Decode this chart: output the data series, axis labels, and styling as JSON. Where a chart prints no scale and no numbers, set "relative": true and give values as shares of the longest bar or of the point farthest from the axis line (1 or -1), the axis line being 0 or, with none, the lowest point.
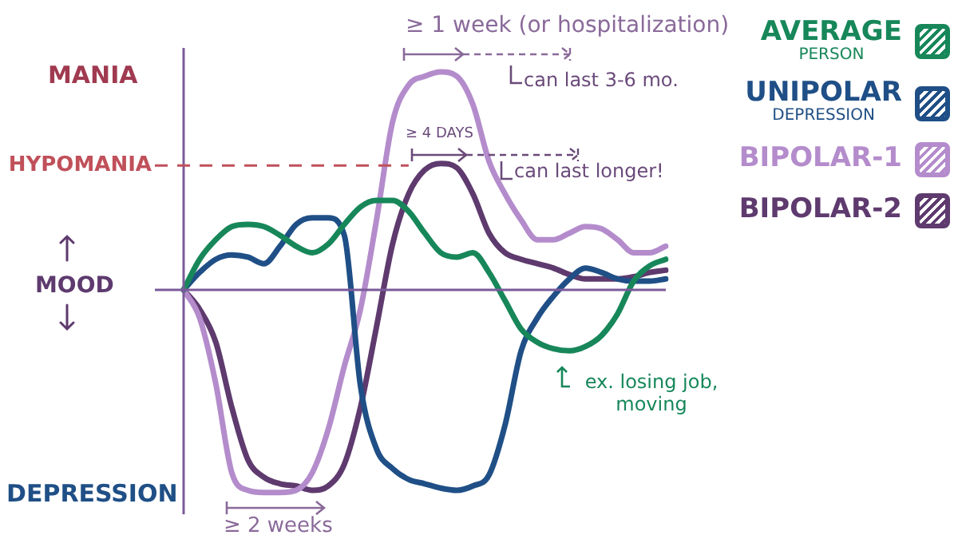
{
  "chart_data": {
    "type": "line",
    "relative": true,
    "ylabel": "MOOD",
    "categories": [
      null,
      null,
      null,
      null,
      null,
      null,
      null,
      null,
      null,
      null,
      null,
      null,
      null,
      null,
      null,
      null,
      null,
      null,
      null,
      null,
      null,
      null,
      null,
      null,
      null,
      null,
      null,
      null,
      null,
      null,
      null
    ],
    "series": [
      {
        "name": "AVERAGE PERSON",
        "color": "#17875a",
        "values": [
          0,
          0.14,
          0.23,
          0.29,
          0.3,
          0.29,
          0.25,
          0.2,
          0.17,
          0.21,
          0.3,
          0.38,
          0.41,
          0.41,
          0.36,
          0.26,
          0.17,
          0.15,
          0.17,
          0.08,
          -0.05,
          -0.18,
          -0.24,
          -0.27,
          -0.28,
          -0.26,
          -0.21,
          -0.11,
          0.04,
          0.11,
          0.14
        ]
      },
      {
        "name": "UNIPOLAR DEPRESSION",
        "color": "#1f4f86",
        "values": [
          0,
          0.08,
          0.14,
          0.16,
          0.15,
          0.12,
          0.2,
          0.3,
          0.33,
          0.33,
          0.25,
          -0.44,
          -0.73,
          -0.82,
          -0.87,
          -0.89,
          -0.91,
          -0.92,
          -0.9,
          -0.85,
          -0.62,
          -0.28,
          -0.13,
          -0.03,
          0.05,
          0.1,
          0.08,
          0.05,
          0.04,
          0.04,
          0.05
        ]
      },
      {
        "name": "BIPOLAR-1",
        "color": "#b48ccc",
        "values": [
          0,
          -0.13,
          -0.43,
          -0.84,
          -0.92,
          -0.93,
          -0.93,
          -0.92,
          -0.84,
          -0.64,
          -0.35,
          -0.09,
          0.32,
          0.77,
          0.94,
          0.98,
          1,
          0.98,
          0.85,
          0.59,
          0.44,
          0.32,
          0.23,
          0.23,
          0.26,
          0.29,
          0.28,
          0.23,
          0.17,
          0.17,
          0.2
        ]
      },
      {
        "name": "BIPOLAR-2",
        "color": "#5e3a6e",
        "values": [
          0,
          -0.09,
          -0.24,
          -0.54,
          -0.78,
          -0.86,
          -0.89,
          -0.9,
          -0.92,
          -0.9,
          -0.8,
          -0.54,
          -0.17,
          0.21,
          0.44,
          0.55,
          0.58,
          0.56,
          0.44,
          0.26,
          0.17,
          0.14,
          0.12,
          0.1,
          0.07,
          0.05,
          0.05,
          0.05,
          0.06,
          0.08,
          0.09
        ]
      }
    ],
    "ref_lines": [
      {
        "axis": "y",
        "value": 0.57,
        "label": "HYPOMANIA",
        "color": "#c0505a",
        "line_style": "dashed"
      },
      {
        "axis": "y",
        "value": 0,
        "color": "#7a5a9a",
        "line_style": "solid"
      }
    ],
    "annotations": [
      "MANIA",
      "DEPRESSION",
      "≥ 1 week (or hospitalization)",
      "can last 3-6 mo.",
      "≥ 4 DAYS",
      "can last longer!",
      "≥ 2 weeks",
      "ex. losing job, moving"
    ],
    "legend": "right",
    "marker": "none",
    "line_style": "solid"
  }
}
